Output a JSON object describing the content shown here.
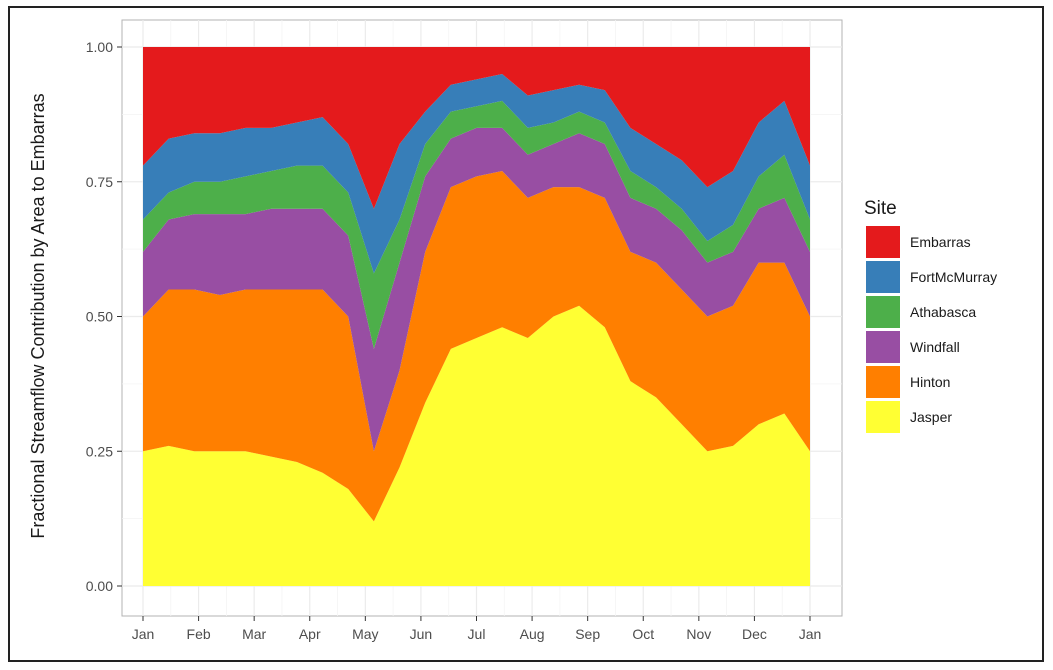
{
  "chart_data": {
    "type": "area",
    "stacked": true,
    "normalized": true,
    "title": "",
    "xlabel": "",
    "ylabel": "Fractional Streamflow Contribution by Area to Embarras",
    "ylim": [
      0,
      1
    ],
    "x": [
      "Jan",
      "Jan",
      "Feb",
      "Feb",
      "Mar",
      "Mar",
      "Apr",
      "Apr",
      "Apr",
      "Apr",
      "May",
      "May",
      "Jun",
      "Jun",
      "Jul",
      "Jul",
      "Aug",
      "Aug",
      "Sep",
      "Sep",
      "Oct",
      "Oct",
      "Nov",
      "Nov",
      "Dec",
      "Dec",
      "Jan"
    ],
    "x_ticks": [
      "Jan",
      "Feb",
      "Mar",
      "Apr",
      "May",
      "Jun",
      "Jul",
      "Aug",
      "Sep",
      "Oct",
      "Nov",
      "Dec",
      "Jan"
    ],
    "y_ticks": [
      "0.00",
      "0.25",
      "0.50",
      "0.75",
      "1.00"
    ],
    "grid": true,
    "legend_title": "Site",
    "legend_position": "right",
    "series": [
      {
        "name": "Jasper",
        "color": "#ffff33",
        "cumulative": [
          0.25,
          0.26,
          0.25,
          0.25,
          0.25,
          0.24,
          0.23,
          0.21,
          0.18,
          0.12,
          0.22,
          0.34,
          0.44,
          0.46,
          0.48,
          0.46,
          0.5,
          0.52,
          0.48,
          0.38,
          0.35,
          0.3,
          0.25,
          0.26,
          0.3,
          0.32,
          0.25
        ]
      },
      {
        "name": "Hinton",
        "color": "#ff7f00",
        "cumulative": [
          0.5,
          0.55,
          0.55,
          0.54,
          0.55,
          0.55,
          0.55,
          0.55,
          0.5,
          0.25,
          0.4,
          0.62,
          0.74,
          0.76,
          0.77,
          0.72,
          0.74,
          0.74,
          0.72,
          0.62,
          0.6,
          0.55,
          0.5,
          0.52,
          0.6,
          0.6,
          0.5
        ]
      },
      {
        "name": "Windfall",
        "color": "#984ea3",
        "cumulative": [
          0.62,
          0.68,
          0.69,
          0.69,
          0.69,
          0.7,
          0.7,
          0.7,
          0.65,
          0.44,
          0.6,
          0.76,
          0.83,
          0.85,
          0.85,
          0.8,
          0.82,
          0.84,
          0.82,
          0.72,
          0.7,
          0.66,
          0.6,
          0.62,
          0.7,
          0.72,
          0.62
        ]
      },
      {
        "name": "Athabasca",
        "color": "#4daf4a",
        "cumulative": [
          0.68,
          0.73,
          0.75,
          0.75,
          0.76,
          0.77,
          0.78,
          0.78,
          0.73,
          0.58,
          0.68,
          0.82,
          0.88,
          0.89,
          0.9,
          0.85,
          0.86,
          0.88,
          0.86,
          0.77,
          0.74,
          0.7,
          0.64,
          0.67,
          0.76,
          0.8,
          0.68
        ]
      },
      {
        "name": "FortMcMurray",
        "color": "#377eb8",
        "cumulative": [
          0.78,
          0.83,
          0.84,
          0.84,
          0.85,
          0.85,
          0.86,
          0.87,
          0.82,
          0.7,
          0.82,
          0.88,
          0.93,
          0.94,
          0.95,
          0.91,
          0.92,
          0.93,
          0.92,
          0.85,
          0.82,
          0.79,
          0.74,
          0.77,
          0.86,
          0.9,
          0.78
        ]
      },
      {
        "name": "Embarras",
        "color": "#e41a1c",
        "cumulative": [
          1,
          1,
          1,
          1,
          1,
          1,
          1,
          1,
          1,
          1,
          1,
          1,
          1,
          1,
          1,
          1,
          1,
          1,
          1,
          1,
          1,
          1,
          1,
          1,
          1,
          1,
          1
        ]
      }
    ]
  }
}
